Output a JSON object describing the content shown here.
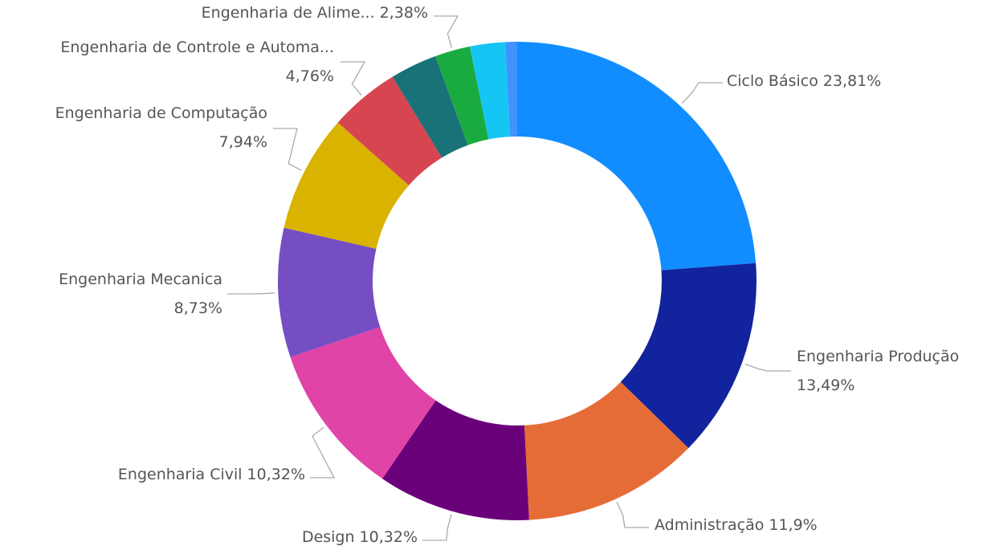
{
  "chart_data": {
    "type": "pie",
    "donut": true,
    "categories": [
      "Ciclo Básico",
      "Engenharia Produção",
      "Administração",
      "Design",
      "Engenharia Civil",
      "Engenharia Mecanica",
      "Engenharia de Computação",
      "Engenharia de Controle e Automa...",
      null,
      "Engenharia de Alime...",
      null,
      null
    ],
    "values": [
      23.81,
      13.49,
      11.9,
      10.32,
      10.32,
      8.73,
      7.94,
      4.76,
      3.17,
      2.38,
      2.38,
      0.79
    ],
    "value_labels": [
      "23,81%",
      "13,49%",
      "11,9%",
      "10,32%",
      "10,32%",
      "8,73%",
      "7,94%",
      "4,76%",
      null,
      "2,38%",
      null,
      null
    ],
    "colors": [
      "#118DFF",
      "#12239E",
      "#E66C37",
      "#6B007B",
      "#E044A7",
      "#744EC2",
      "#D9B300",
      "#D64550",
      "#197278",
      "#1AAB40",
      "#15C6F4",
      "#4092FF"
    ]
  }
}
